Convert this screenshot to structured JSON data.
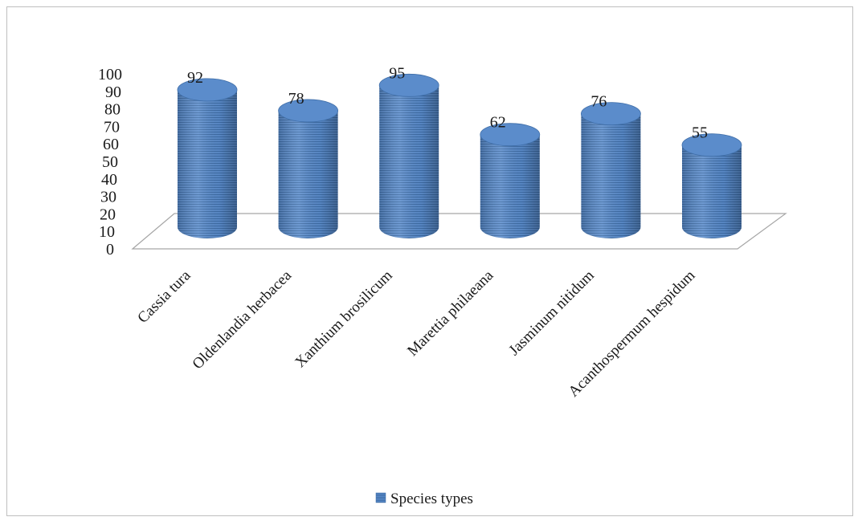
{
  "chart_data": {
    "type": "bar",
    "style": "3d-cylinder",
    "categories": [
      "Cassia tura",
      "Oldenlandia herbacea",
      "Xanthium brosilicum",
      "Marettia philaeana",
      "Jasminum nitidum",
      "Acanthospermum hespidum"
    ],
    "series": [
      {
        "name": "Species types",
        "values": [
          92,
          78,
          95,
          62,
          76,
          55
        ],
        "color": "#4f81bd"
      }
    ],
    "y_ticks": [
      "0",
      "10",
      "20",
      "30",
      "40",
      "50",
      "60",
      "70",
      "80",
      "90",
      "100"
    ],
    "ylim": [
      0,
      100
    ],
    "data_labels": [
      "92",
      "78",
      "95",
      "62",
      "76",
      "55"
    ],
    "grid": false,
    "legend_position": "bottom"
  }
}
